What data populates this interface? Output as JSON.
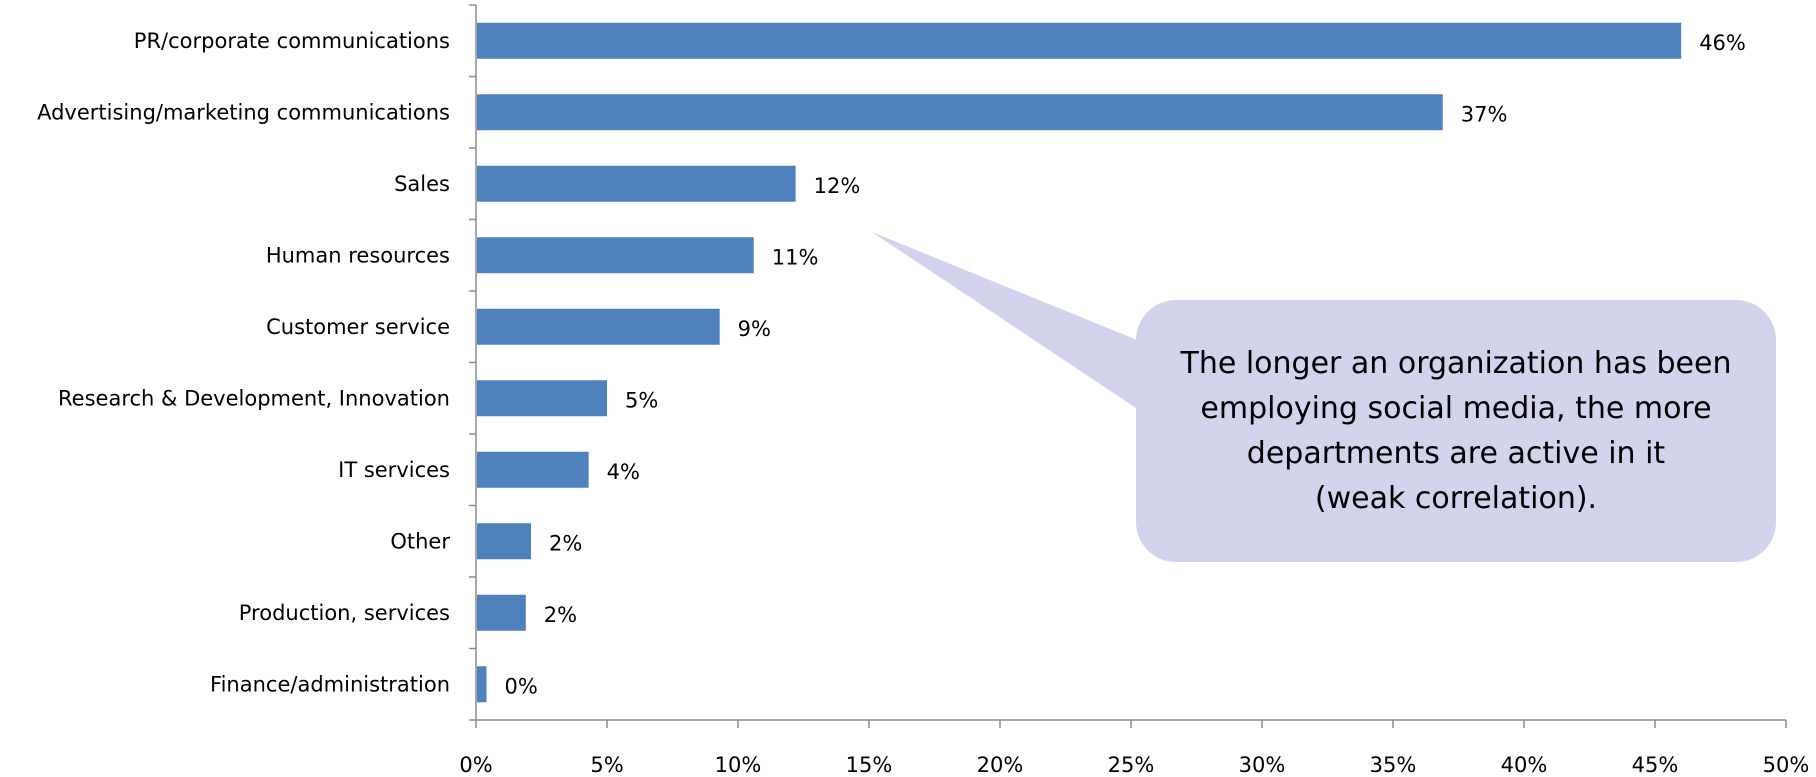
{
  "chart_data": {
    "type": "bar",
    "orientation": "horizontal",
    "categories": [
      "PR/corporate communications",
      "Advertising/marketing communications",
      "Sales",
      "Human resources",
      "Customer service",
      "Research & Development, Innovation",
      "IT services",
      "Other",
      "Production, services",
      "Finance/administration"
    ],
    "values": [
      46,
      37,
      12,
      11,
      9,
      5,
      4,
      2,
      2,
      0
    ],
    "value_labels": [
      "46%",
      "37%",
      "12%",
      "11%",
      "9%",
      "5%",
      "4%",
      "2%",
      "2%",
      "0%"
    ],
    "plotted_values": [
      46.0,
      36.9,
      12.2,
      10.6,
      9.3,
      5.0,
      4.3,
      2.1,
      1.9,
      0.4
    ],
    "xlim": [
      0,
      50
    ],
    "xticks": [
      0,
      5,
      10,
      15,
      20,
      25,
      30,
      35,
      40,
      45,
      50
    ],
    "xtick_labels": [
      "0%",
      "5%",
      "10%",
      "15%",
      "20%",
      "25%",
      "30%",
      "35%",
      "40%",
      "45%",
      "50%"
    ],
    "grid": false,
    "legend": "none",
    "title": "",
    "xlabel": "",
    "ylabel": "",
    "bar_color": "#4f81bd"
  },
  "callout": {
    "lines": [
      "The longer an organization has been",
      "employing social media, the more",
      "departments are active in it",
      "(weak correlation)."
    ],
    "color": "#d3d3ee"
  }
}
